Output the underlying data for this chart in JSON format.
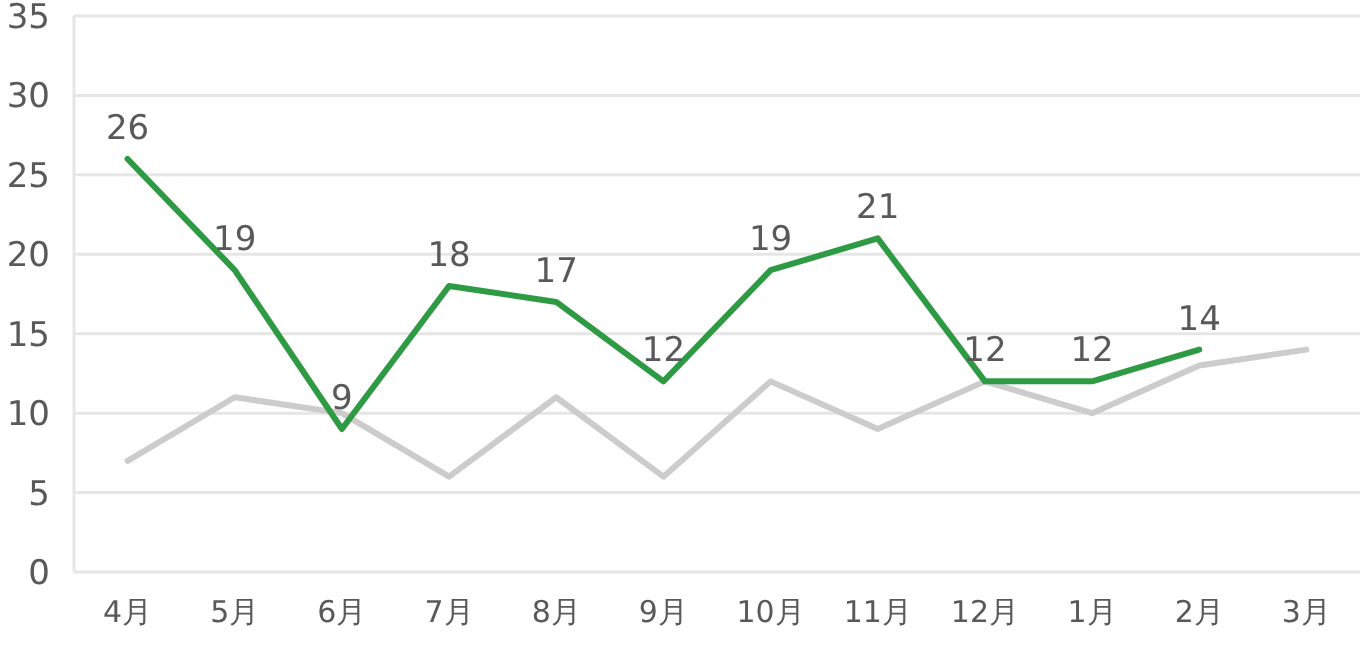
{
  "chart_data": {
    "type": "line",
    "categories": [
      "4月",
      "5月",
      "6月",
      "7月",
      "8月",
      "9月",
      "10月",
      "11月",
      "12月",
      "1月",
      "2月",
      "3月"
    ],
    "series": [
      {
        "color": "#cccccc",
        "values": [
          7,
          11,
          10,
          6,
          11,
          6,
          12,
          9,
          12,
          10,
          13,
          14
        ]
      },
      {
        "color": "#2e9a44",
        "values": [
          26,
          19,
          9,
          18,
          17,
          12,
          19,
          21,
          12,
          12,
          14,
          null
        ],
        "value_labels": [
          "26",
          "19",
          "9",
          "18",
          "17",
          "12",
          "19",
          "21",
          "12",
          "12",
          "14",
          null
        ]
      }
    ],
    "ylim": [
      0,
      35
    ],
    "yticks": [
      0,
      5,
      10,
      15,
      20,
      25,
      30,
      35
    ],
    "grid": "y",
    "marker": "none",
    "line_style": "solid"
  }
}
